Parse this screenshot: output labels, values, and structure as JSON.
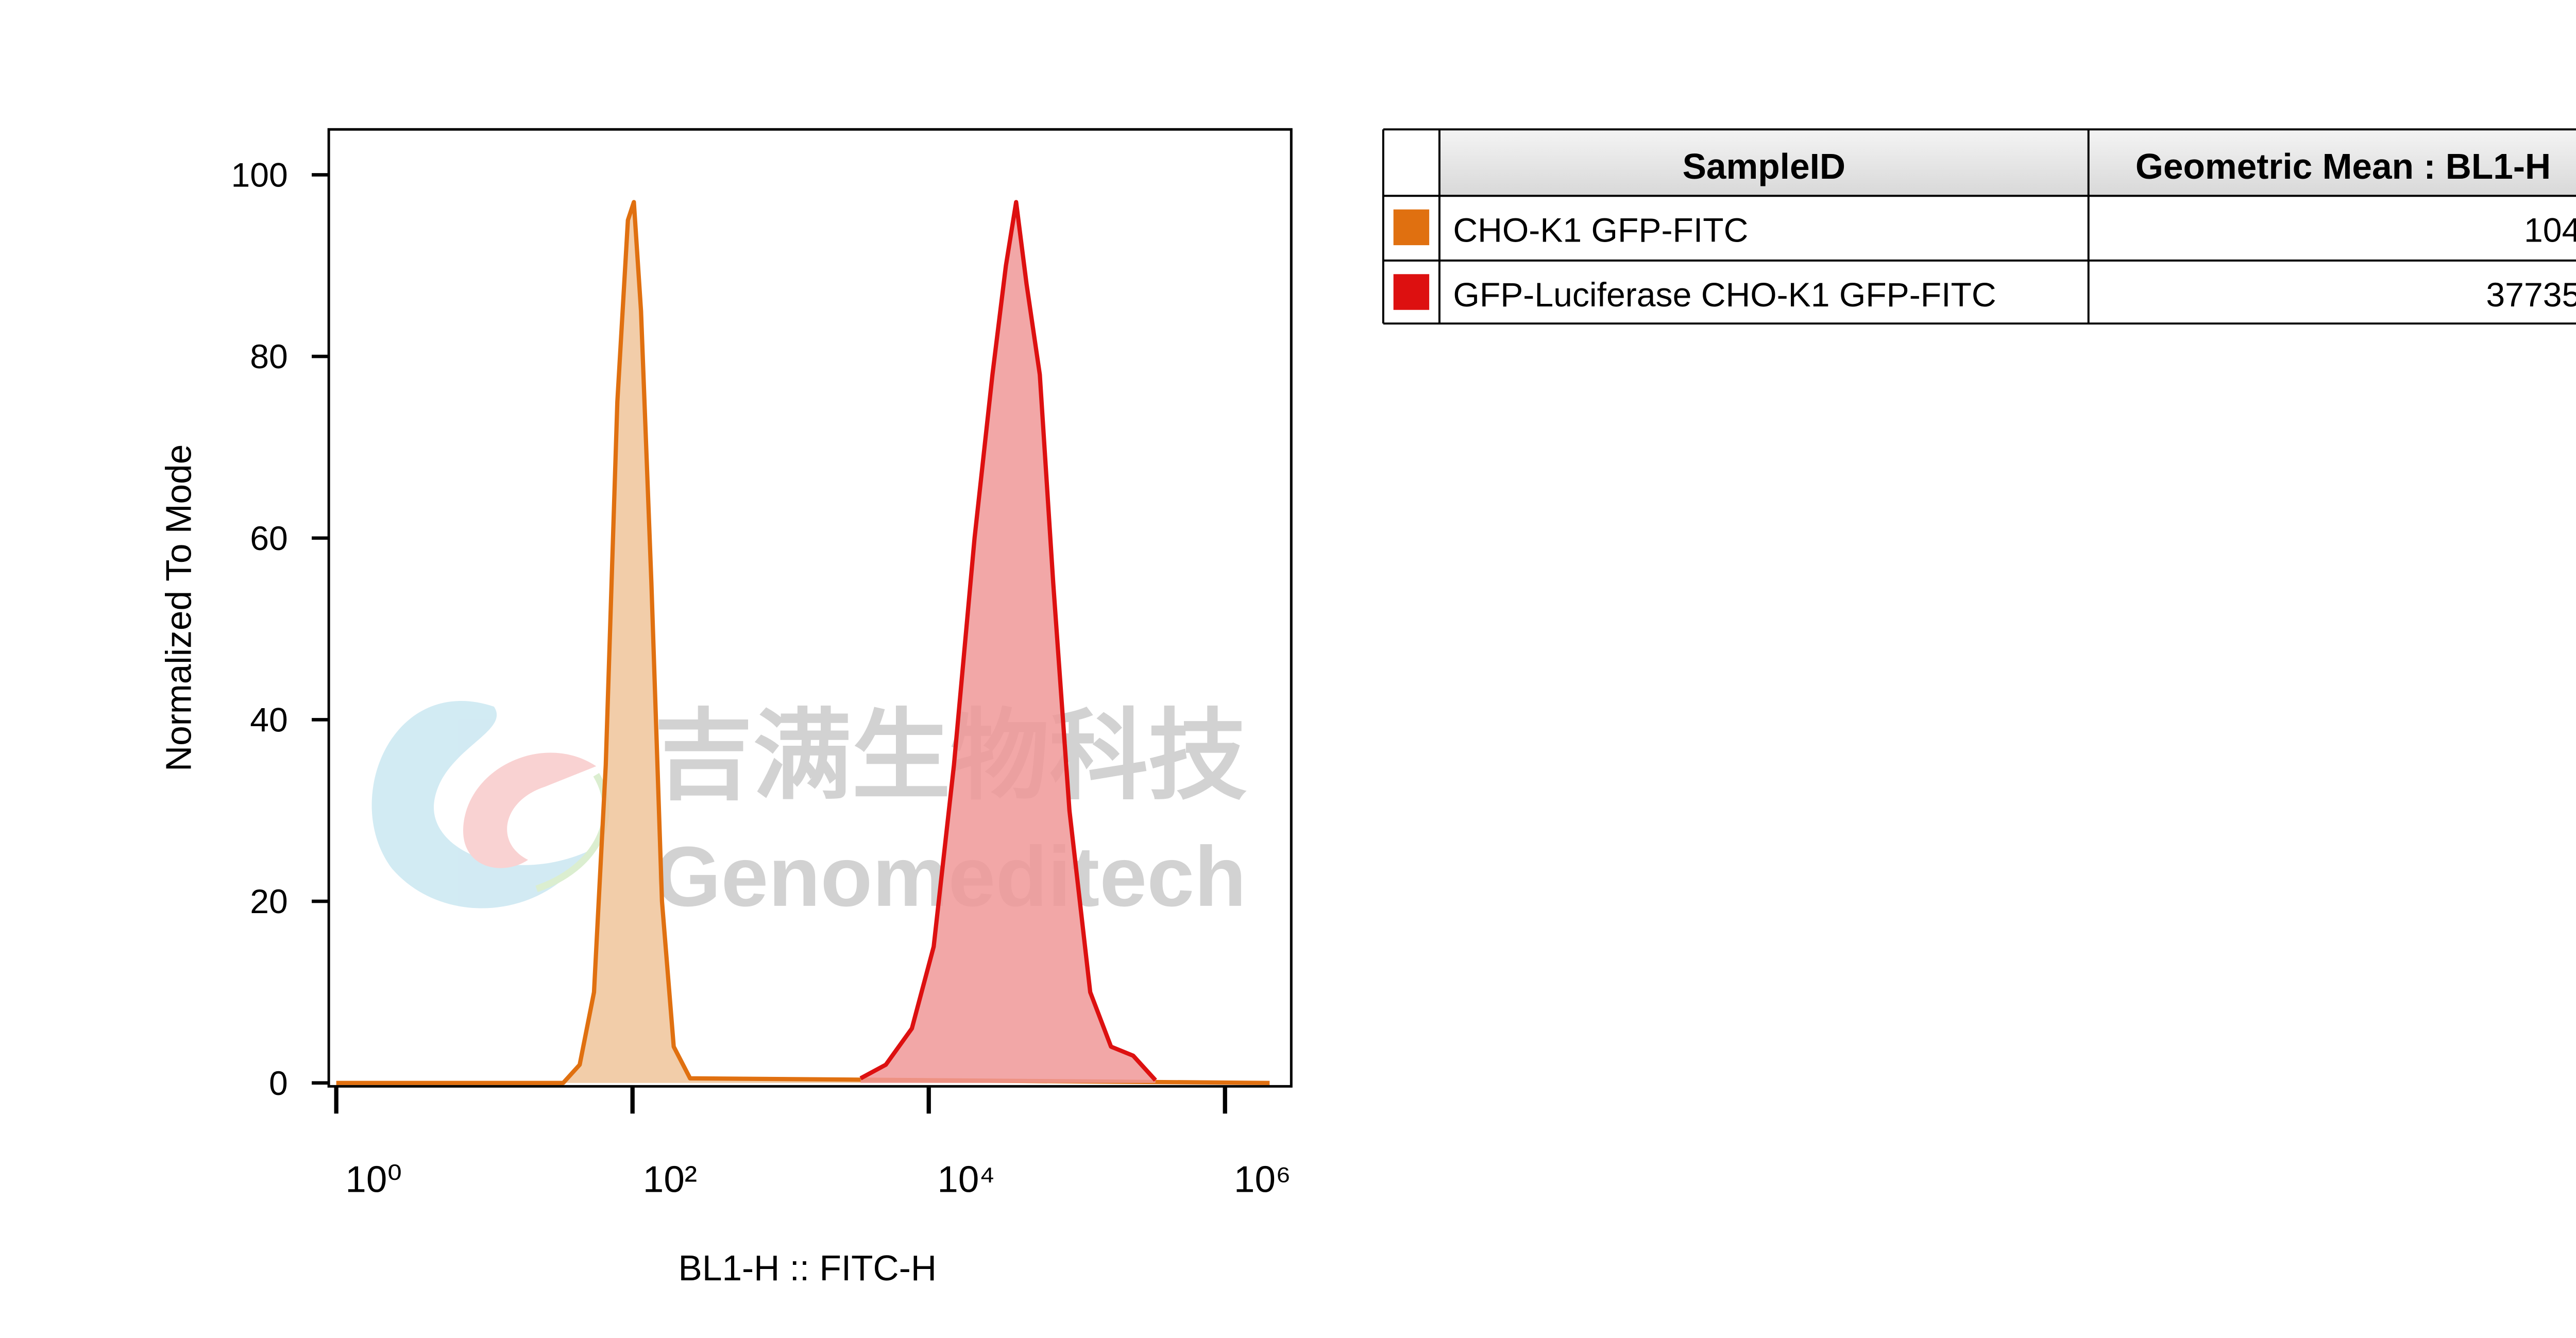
{
  "chart_data": {
    "type": "histogram_overlay",
    "x_label": "BL1-H :: FITC-H",
    "y_label": "Normalized To Mode",
    "x_log": true,
    "xlim": [
      0.89,
      2800000
    ],
    "xticks": [
      {
        "value": 1,
        "label": "10⁰"
      },
      {
        "value": 100,
        "label": "10²"
      },
      {
        "value": 10000,
        "label": "10⁴"
      },
      {
        "value": 1000000,
        "label": "10⁶"
      }
    ],
    "ylim": [
      0,
      105
    ],
    "yticks": [
      0,
      20,
      40,
      60,
      80,
      100
    ],
    "series": [
      {
        "name": "CHO-K1 GFP-FITC",
        "color": "#e07010",
        "fill": "#f0c49a",
        "geometric_mean": 104,
        "x": [
          1,
          34,
          44,
          55,
          66,
          79,
          93,
          102,
          114,
          134,
          158,
          190,
          245,
          2000000
        ],
        "values": [
          0,
          0,
          2,
          10,
          35,
          75,
          95,
          97,
          85,
          55,
          20,
          4,
          0.5,
          0
        ]
      },
      {
        "name": "GFP-Luciferase CHO-K1 GFP-FITC",
        "color": "#dd1010",
        "fill": "#f09898",
        "geometric_mean": 37735,
        "x": [
          3470,
          5130,
          7700,
          10800,
          14800,
          20400,
          26900,
          33200,
          38900,
          45700,
          56200,
          69200,
          89100,
          123000,
          170000,
          240000,
          339000
        ],
        "values": [
          0.5,
          2,
          6,
          15,
          35,
          60,
          78,
          90,
          97,
          88,
          78,
          55,
          30,
          10,
          4,
          3,
          0.3
        ]
      }
    ],
    "table": {
      "columns": [
        "SampleID",
        "Geometric Mean : BL1-H"
      ]
    },
    "watermark": {
      "cn": "吉满生物科技",
      "en": "Genomeditech"
    }
  }
}
